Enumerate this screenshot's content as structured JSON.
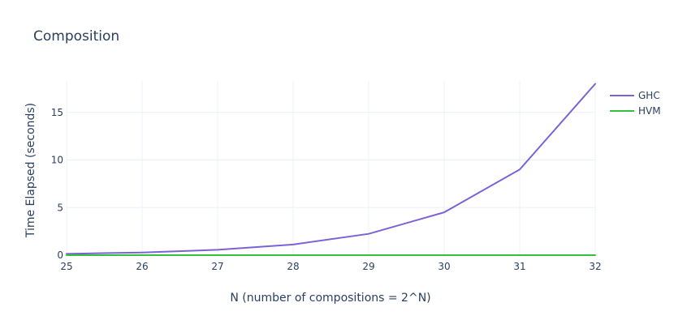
{
  "chart_data": {
    "type": "line",
    "title": "Composition",
    "xlabel": "N (number of compositions = 2^N)",
    "ylabel": "Time Elapsed (seconds)",
    "x": [
      25,
      26,
      27,
      28,
      29,
      30,
      31,
      32
    ],
    "xlim": [
      25,
      32
    ],
    "ylim": [
      0,
      18.3
    ],
    "xticks": [
      25,
      26,
      27,
      28,
      29,
      30,
      31,
      32
    ],
    "yticks": [
      0,
      5,
      10,
      15
    ],
    "grid": true,
    "legend_position": "top-right",
    "series": [
      {
        "name": "GHC",
        "color": "#7b62d6",
        "values": [
          0.14,
          0.28,
          0.56,
          1.12,
          2.24,
          4.5,
          9.0,
          18.0
        ]
      },
      {
        "name": "HVM",
        "color": "#2fc23a",
        "values": [
          0.0,
          0.0,
          0.0,
          0.0,
          0.0,
          0.0,
          0.0,
          0.0
        ]
      }
    ]
  }
}
